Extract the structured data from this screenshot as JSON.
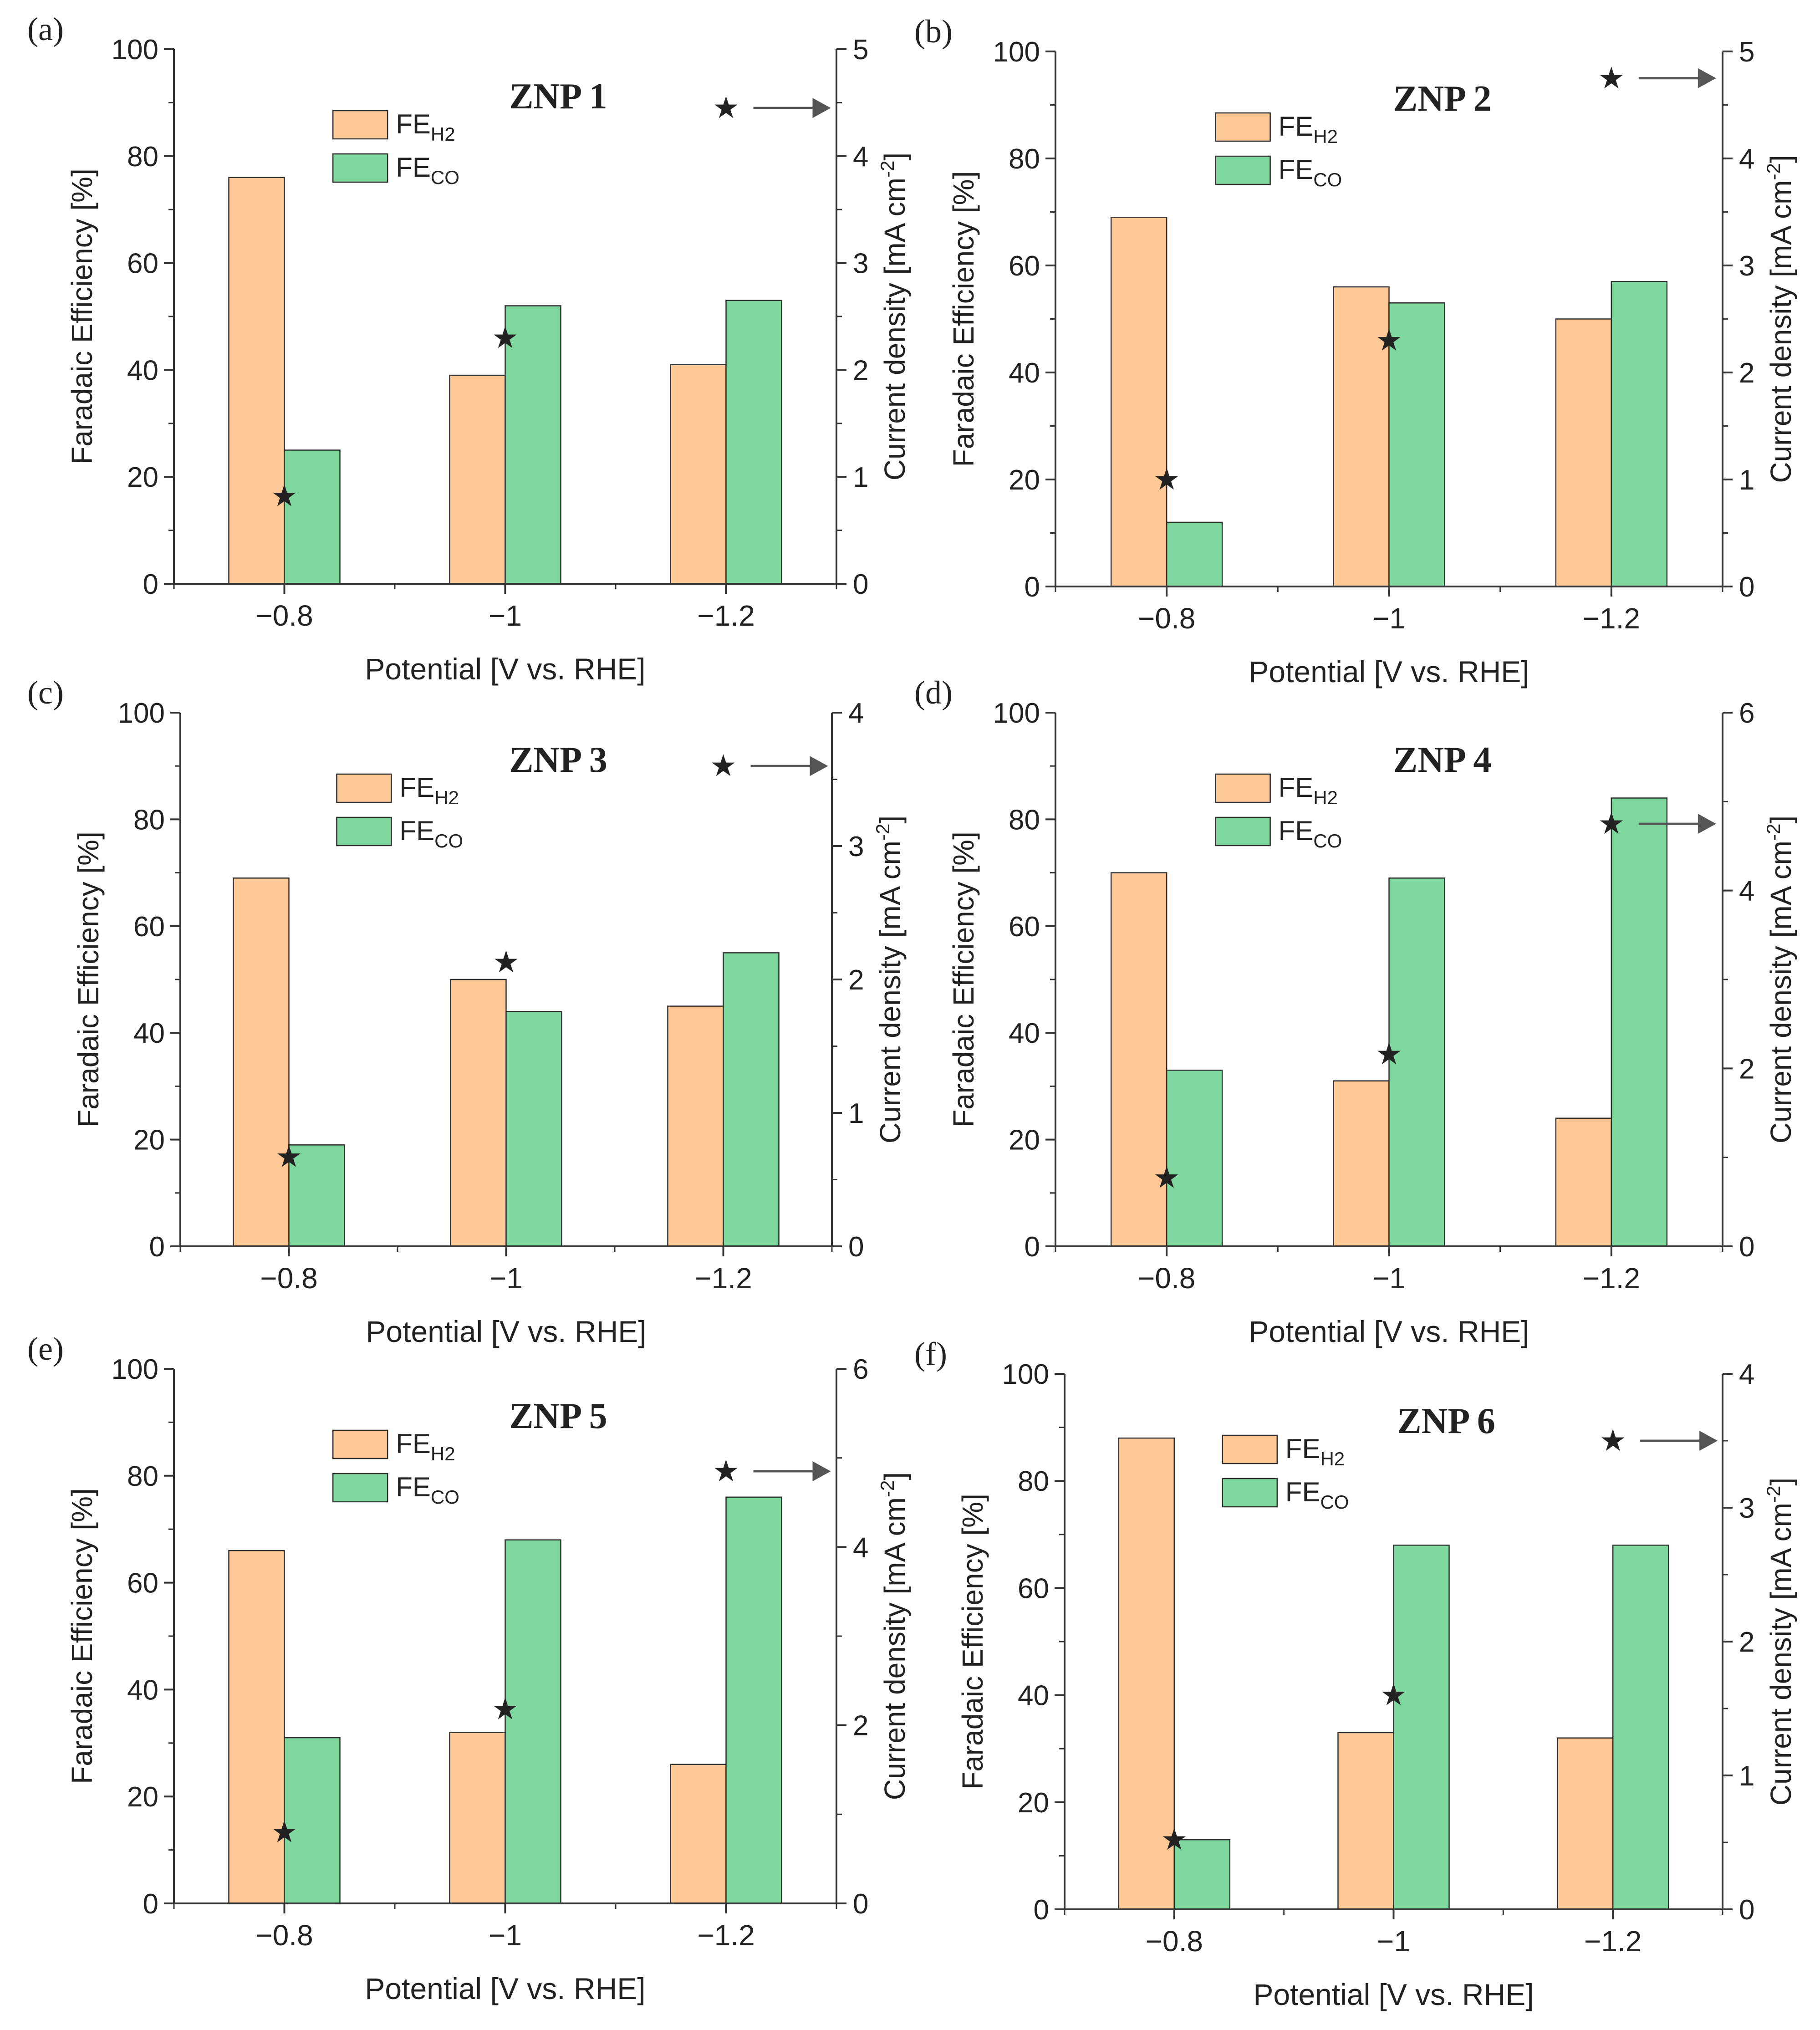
{
  "figure": {
    "xlabel": "Potential [V vs. RHE]",
    "ylabel_left": "Faradaic Efficiency [%]",
    "ylabel_right": "Current density [mA cm",
    "ylabel_right_sup": "-2",
    "ylabel_right_close": "]",
    "legend_fe": "FE",
    "legend_h2_sub": "H2",
    "legend_co_sub": "CO",
    "star_glyph": "★",
    "arrow_glyph": "→",
    "colors": {
      "h2": "#fdc796",
      "co": "#7ed79c",
      "star": "#474747",
      "axis": "#333333"
    }
  },
  "chart_data": [
    {
      "type": "bar",
      "panel": "(a)",
      "title": "ZNP 1",
      "categories": [
        "−0.8",
        "−1",
        "−1.2"
      ],
      "series": [
        {
          "name": "FE_H2",
          "values": [
            76,
            39,
            41
          ]
        },
        {
          "name": "FE_CO",
          "values": [
            25,
            52,
            53
          ]
        }
      ],
      "current_density": [
        0.82,
        2.3,
        4.45
      ],
      "ylim": [
        0,
        100
      ],
      "y2lim": [
        0,
        5
      ],
      "yticks": [
        "0",
        "20",
        "40",
        "60",
        "80",
        "100"
      ],
      "y2ticks": [
        "0",
        "1",
        "2",
        "3",
        "4",
        "5"
      ],
      "y2step": 1
    },
    {
      "type": "bar",
      "panel": "(b)",
      "title": "ZNP 2",
      "categories": [
        "−0.8",
        "−1",
        "−1.2"
      ],
      "series": [
        {
          "name": "FE_H2",
          "values": [
            69,
            56,
            50
          ]
        },
        {
          "name": "FE_CO",
          "values": [
            12,
            53,
            57
          ]
        }
      ],
      "current_density": [
        1.0,
        2.3,
        4.75
      ],
      "ylim": [
        0,
        100
      ],
      "y2lim": [
        0,
        5
      ],
      "yticks": [
        "0",
        "20",
        "40",
        "60",
        "80",
        "100"
      ],
      "y2ticks": [
        "0",
        "1",
        "2",
        "3",
        "4",
        "5"
      ],
      "y2step": 1
    },
    {
      "type": "bar",
      "panel": "(c)",
      "title": "ZNP 3",
      "categories": [
        "−0.8",
        "−1",
        "−1.2"
      ],
      "series": [
        {
          "name": "FE_H2",
          "values": [
            69,
            50,
            45
          ]
        },
        {
          "name": "FE_CO",
          "values": [
            19,
            44,
            55
          ]
        }
      ],
      "current_density": [
        0.67,
        2.13,
        3.6
      ],
      "ylim": [
        0,
        100
      ],
      "y2lim": [
        0,
        4
      ],
      "yticks": [
        "0",
        "20",
        "40",
        "60",
        "80",
        "100"
      ],
      "y2ticks": [
        "0",
        "1",
        "2",
        "3",
        "4"
      ],
      "y2step": 1
    },
    {
      "type": "bar",
      "panel": "(d)",
      "title": "ZNP 4",
      "categories": [
        "−0.8",
        "−1",
        "−1.2"
      ],
      "series": [
        {
          "name": "FE_H2",
          "values": [
            70,
            31,
            24
          ]
        },
        {
          "name": "FE_CO",
          "values": [
            33,
            69,
            84
          ]
        }
      ],
      "current_density": [
        0.77,
        2.16,
        4.75
      ],
      "ylim": [
        0,
        100
      ],
      "y2lim": [
        0,
        6
      ],
      "yticks": [
        "0",
        "20",
        "40",
        "60",
        "80",
        "100"
      ],
      "y2ticks": [
        "0",
        "2",
        "4",
        "6"
      ],
      "y2step": 2
    },
    {
      "type": "bar",
      "panel": "(e)",
      "title": "ZNP 5",
      "categories": [
        "−0.8",
        "−1",
        "−1.2"
      ],
      "series": [
        {
          "name": "FE_H2",
          "values": [
            66,
            32,
            26
          ]
        },
        {
          "name": "FE_CO",
          "values": [
            31,
            68,
            76
          ]
        }
      ],
      "current_density": [
        0.8,
        2.18,
        4.85
      ],
      "ylim": [
        0,
        100
      ],
      "y2lim": [
        0,
        6
      ],
      "yticks": [
        "0",
        "20",
        "40",
        "60",
        "80",
        "100"
      ],
      "y2ticks": [
        "0",
        "2",
        "4",
        "6"
      ],
      "y2step": 2
    },
    {
      "type": "bar",
      "panel": "(f)",
      "title": "ZNP 6",
      "categories": [
        "−0.8",
        "−1",
        "−1.2"
      ],
      "series": [
        {
          "name": "FE_H2",
          "values": [
            88,
            33,
            32
          ]
        },
        {
          "name": "FE_CO",
          "values": [
            13,
            68,
            68
          ]
        }
      ],
      "current_density": [
        0.52,
        1.6,
        3.5
      ],
      "ylim": [
        0,
        100
      ],
      "y2lim": [
        0,
        4
      ],
      "yticks": [
        "0",
        "20",
        "40",
        "60",
        "80",
        "100"
      ],
      "y2ticks": [
        "0",
        "1",
        "2",
        "3",
        "4"
      ],
      "y2step": 1
    }
  ]
}
